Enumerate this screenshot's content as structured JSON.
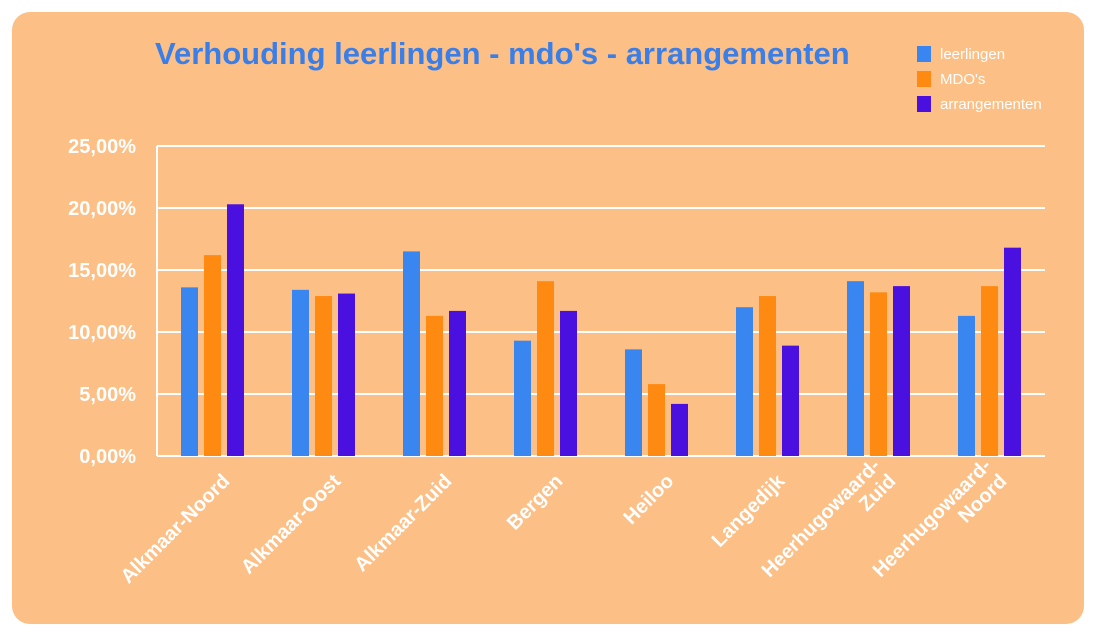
{
  "colors": {
    "background": "#fcbf85",
    "title": "#3a7ee8",
    "grid": "#ffffff",
    "text": "#ffffff",
    "series": [
      "#3a86f0",
      "#ff8a12",
      "#4a10e0"
    ]
  },
  "chart_data": {
    "type": "bar",
    "title": "Verhouding leerlingen - mdo's - arrangementen",
    "xlabel": "",
    "ylabel": "",
    "ylim": [
      0,
      0.25
    ],
    "y_ticks": [
      "0,00%",
      "5,00%",
      "10,00%",
      "15,00%",
      "20,00%",
      "25,00%"
    ],
    "y_tick_values": [
      0,
      0.05,
      0.1,
      0.15,
      0.2,
      0.25
    ],
    "grid": true,
    "legend_position": "top-right",
    "categories": [
      [
        "Alkmaar-Noord"
      ],
      [
        "Alkmaar-Oost"
      ],
      [
        "Alkmaar-Zuid"
      ],
      [
        "Bergen"
      ],
      [
        "Heiloo"
      ],
      [
        "Langedijk"
      ],
      [
        "Heerhugowaard-",
        "Zuid"
      ],
      [
        "Heerhugowaard-",
        "Noord"
      ]
    ],
    "series": [
      {
        "name": "leerlingen",
        "values": [
          0.136,
          0.134,
          0.165,
          0.093,
          0.086,
          0.12,
          0.141,
          0.113
        ]
      },
      {
        "name": "MDO's",
        "values": [
          0.162,
          0.129,
          0.113,
          0.141,
          0.058,
          0.129,
          0.132,
          0.137
        ]
      },
      {
        "name": "arrangementen",
        "values": [
          0.203,
          0.131,
          0.117,
          0.117,
          0.042,
          0.089,
          0.137,
          0.168
        ]
      }
    ]
  }
}
